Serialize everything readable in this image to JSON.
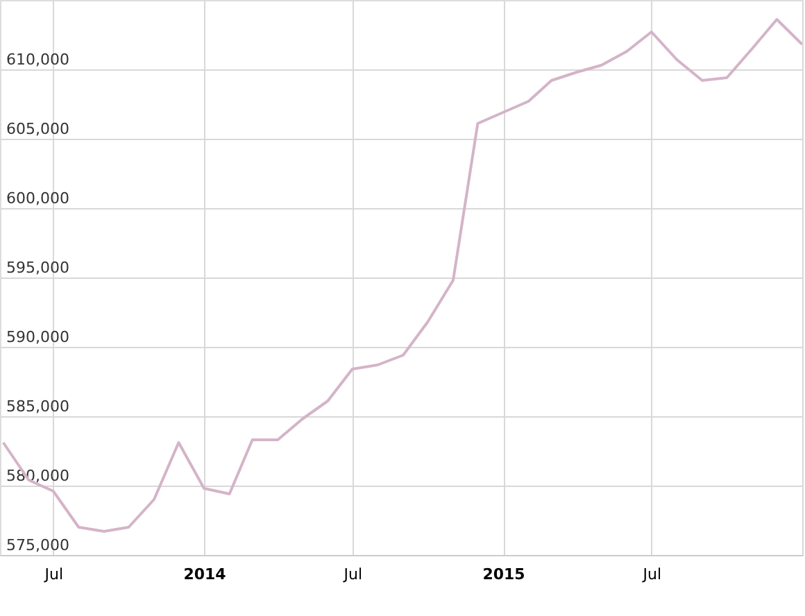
{
  "chart_data": {
    "type": "line",
    "x": [
      "2013-05",
      "2013-06",
      "2013-07",
      "2013-08",
      "2013-09",
      "2013-10",
      "2013-11",
      "2013-12",
      "2014-01",
      "2014-02",
      "2014-03",
      "2014-04",
      "2014-05",
      "2014-06",
      "2014-07",
      "2014-08",
      "2014-09",
      "2014-10",
      "2014-11",
      "2014-12",
      "2015-01",
      "2015-02",
      "2015-03",
      "2015-04",
      "2015-05",
      "2015-06",
      "2015-07",
      "2015-08",
      "2015-09",
      "2015-10",
      "2015-11",
      "2015-12",
      "2016-01"
    ],
    "series": [
      {
        "color": "#d4b4c8",
        "values": [
          583100,
          580400,
          579600,
          577000,
          576700,
          577000,
          579000,
          583100,
          579800,
          579400,
          583300,
          583300,
          584800,
          586100,
          588400,
          588700,
          589400,
          591800,
          594800,
          606100,
          606900,
          607700,
          609200,
          609800,
          610300,
          611300,
          612700,
          610700,
          609200,
          609400,
          611500,
          613600,
          611800
        ]
      }
    ],
    "xlim": [
      "2013-04-27",
      "2016-01-01"
    ],
    "xticks": [
      {
        "value": "2013-07-01",
        "label": "Jul"
      },
      {
        "value": "2014-01-01",
        "label": "2014"
      },
      {
        "value": "2014-07-01",
        "label": "Jul"
      },
      {
        "value": "2015-01-01",
        "label": "2015"
      },
      {
        "value": "2015-07-01",
        "label": "Jul"
      },
      {
        "value": "2016-01-01",
        "label": null
      }
    ],
    "ylim": [
      575000,
      615000
    ],
    "yticks": [
      {
        "value": 575000,
        "label": "575,000"
      },
      {
        "value": 580000,
        "label": "580,000"
      },
      {
        "value": 585000,
        "label": "585,000"
      },
      {
        "value": 590000,
        "label": "590,000"
      },
      {
        "value": 595000,
        "label": "595,000"
      },
      {
        "value": 600000,
        "label": "600,000"
      },
      {
        "value": 605000,
        "label": "605,000"
      },
      {
        "value": 610000,
        "label": "610,000"
      }
    ],
    "grid": true,
    "marker": "none",
    "line_style": "solid"
  }
}
